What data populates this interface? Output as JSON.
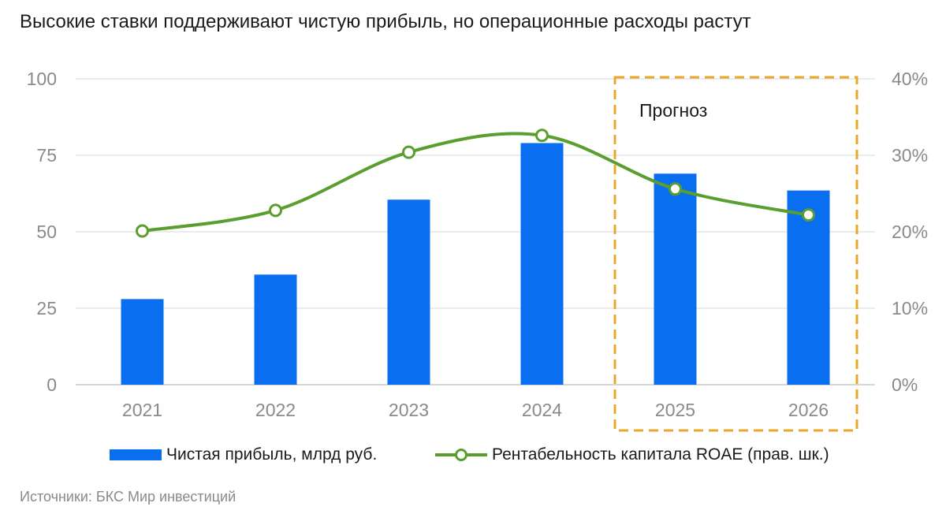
{
  "title": "Высокие ставки поддерживают чистую прибыль, но операционные расходы растут",
  "source": "Источники: БКС Мир инвестиций",
  "forecast_label": "Прогноз",
  "legend": {
    "bars": "Чистая прибыль, млрд руб.",
    "line": "Рентабельность капитала ROAE (прав. шк.)"
  },
  "colors": {
    "bar": "#0a6ef0",
    "line": "#5a9e2f",
    "forecast_box": "#e8a92a",
    "grid": "#d9d9d9",
    "tick": "#8a8a8a"
  },
  "chart_data": {
    "type": "bar+line",
    "categories": [
      "2021",
      "2022",
      "2023",
      "2024",
      "2025",
      "2026"
    ],
    "series": [
      {
        "name": "Чистая прибыль, млрд руб.",
        "type": "bar",
        "axis": "left",
        "values": [
          28,
          36,
          60.5,
          79,
          69,
          63.5
        ]
      },
      {
        "name": "Рентабельность капитала ROAE (прав. шк.)",
        "type": "line",
        "axis": "right",
        "smooth": true,
        "values": [
          20.1,
          22.8,
          30.4,
          32.6,
          25.6,
          22.2
        ]
      }
    ],
    "left_axis": {
      "min": 0,
      "max": 100,
      "ticks": [
        0,
        25,
        50,
        75,
        100
      ],
      "tick_labels": [
        "0",
        "25",
        "50",
        "75",
        "100"
      ]
    },
    "right_axis": {
      "min": 0,
      "max": 40,
      "ticks": [
        0,
        10,
        20,
        30,
        40
      ],
      "tick_labels": [
        "0%",
        "10%",
        "20%",
        "30%",
        "40%"
      ]
    },
    "forecast_categories": [
      "2025",
      "2026"
    ],
    "grid": true,
    "legend_position": "bottom"
  }
}
